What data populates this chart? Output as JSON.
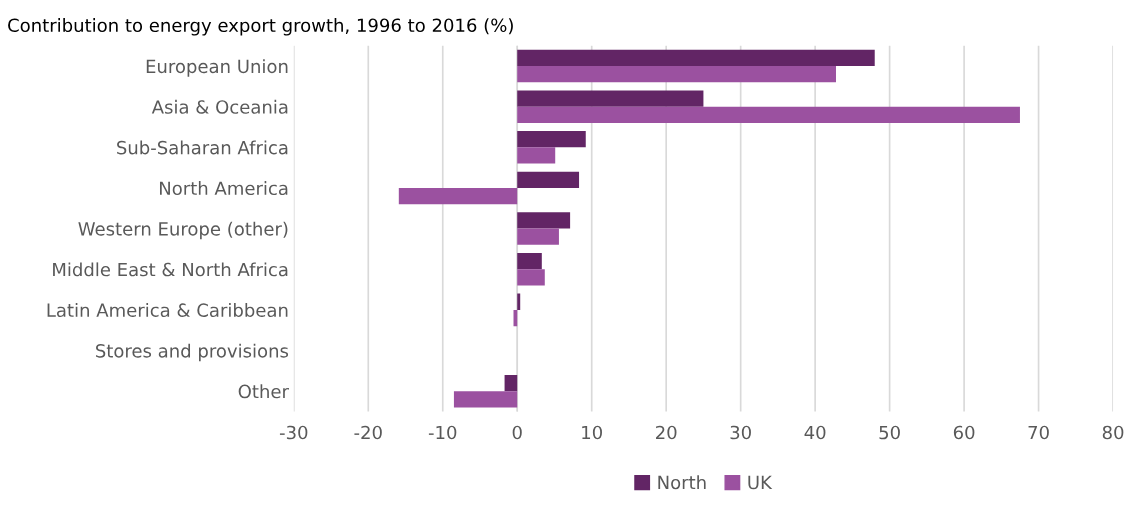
{
  "chart_data": {
    "type": "bar",
    "orientation": "horizontal",
    "title": "Contribution to energy export growth, 1996 to 2016 (%)",
    "categories": [
      "European Union",
      "Asia & Oceania",
      "Sub-Saharan Africa",
      "North America",
      "Western Europe (other)",
      "Middle East & North Africa",
      "Latin America & Caribbean",
      "Stores and provisions",
      "Other"
    ],
    "series": [
      {
        "name": "North",
        "color": "#622565",
        "values": [
          48.0,
          25.0,
          9.2,
          8.3,
          7.1,
          3.3,
          0.4,
          null,
          -1.7
        ]
      },
      {
        "name": "UK",
        "color": "#9b51a0",
        "values": [
          42.8,
          67.5,
          5.1,
          -15.9,
          5.6,
          3.7,
          -0.5,
          null,
          -8.5
        ]
      }
    ],
    "xlim": [
      -30,
      80
    ],
    "xticks": [
      -30,
      -20,
      -10,
      0,
      10,
      20,
      30,
      40,
      50,
      60,
      70,
      80
    ],
    "grid": "x",
    "legend": "bottom"
  }
}
